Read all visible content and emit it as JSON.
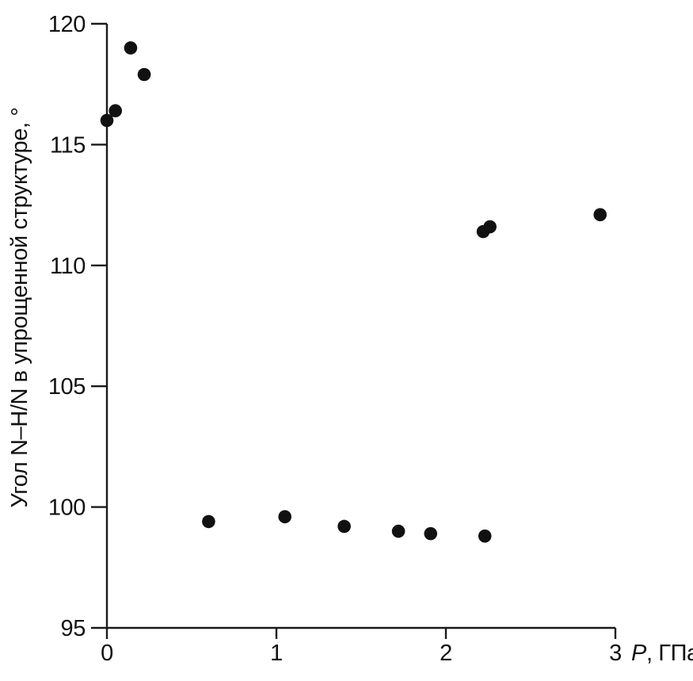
{
  "chart_data": {
    "type": "scatter",
    "title": "",
    "xlabel": "P, ГПа",
    "xlabel_symbol": "P",
    "xlabel_unit": ", ГПа",
    "ylabel": "Угол N–H/N в упрощенной структуре, °",
    "xlim": [
      0,
      3
    ],
    "ylim": [
      95,
      120
    ],
    "x_ticks": [
      0,
      1,
      2,
      3
    ],
    "y_ticks": [
      95,
      100,
      105,
      110,
      115,
      120
    ],
    "grid": false,
    "legend": "none",
    "marker": {
      "shape": "circle",
      "color": "#111111",
      "radius_px": 8.3
    },
    "axis_color": "#1a1a1a",
    "background": "#ffffff",
    "points": [
      {
        "x": 0.0,
        "y": 116.0
      },
      {
        "x": 0.05,
        "y": 116.4
      },
      {
        "x": 0.14,
        "y": 119.0
      },
      {
        "x": 0.22,
        "y": 117.9
      },
      {
        "x": 0.6,
        "y": 99.4
      },
      {
        "x": 1.05,
        "y": 99.6
      },
      {
        "x": 1.4,
        "y": 99.2
      },
      {
        "x": 1.72,
        "y": 99.0
      },
      {
        "x": 1.91,
        "y": 98.9
      },
      {
        "x": 2.22,
        "y": 111.4
      },
      {
        "x": 2.23,
        "y": 98.8
      },
      {
        "x": 2.26,
        "y": 111.6
      },
      {
        "x": 2.91,
        "y": 112.1
      }
    ]
  }
}
